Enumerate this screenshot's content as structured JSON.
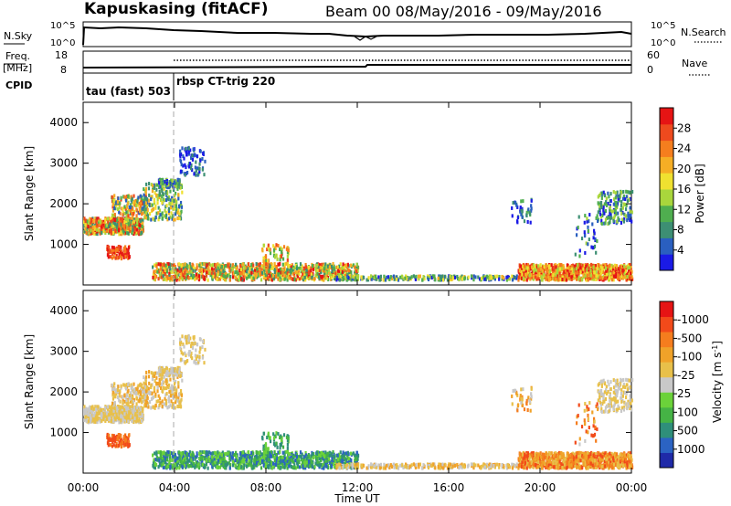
{
  "header": {
    "station": "Kapuskasing (fitACF)",
    "beam_time": "Beam 00  08/May/2016 - 09/May/2016"
  },
  "panels": {
    "nsky": {
      "left_label": "N.Sky",
      "left_ticks": [
        "10^5",
        "10^0"
      ],
      "right_ticks": [
        "10^5",
        "10^0"
      ],
      "right_label": "N.Search"
    },
    "freq": {
      "left_label": "Freq.",
      "unit": "[MHz]",
      "left_ticks": [
        "18",
        "8"
      ],
      "right_ticks": [
        "60",
        "0"
      ],
      "right_label": "Nave"
    },
    "cpid": {
      "label": "CPID",
      "segments": [
        "tau (fast) 503",
        "rbsp CT-trig 220"
      ]
    }
  },
  "chart_data": [
    {
      "type": "heatmap",
      "name": "power",
      "ylabel": "Slant Range [km]",
      "yticks": [
        1000,
        2000,
        3000,
        4000
      ],
      "xlabel": "",
      "colorbar": {
        "label": "Power [dB]",
        "ticks": [
          "4",
          "8",
          "12",
          "16",
          "20",
          "24",
          "28"
        ],
        "colors": [
          "#1a1ae6",
          "#2a5fc0",
          "#3d8f73",
          "#4fae4f",
          "#a9d63c",
          "#f0e130",
          "#f5ae25",
          "#f57e1e",
          "#ee4a1e",
          "#e61414"
        ]
      }
    },
    {
      "type": "heatmap",
      "name": "velocity",
      "ylabel": "Slant Range [km]",
      "yticks": [
        1000,
        2000,
        3000,
        4000
      ],
      "xlabel": "Time UT",
      "xticks": [
        "00:00",
        "04:00",
        "08:00",
        "12:00",
        "16:00",
        "20:00",
        "00:00"
      ],
      "colorbar": {
        "label": "Velocity [m s-1]",
        "ticks": [
          "1000",
          "500",
          "100",
          "25",
          "-25",
          "-100",
          "-500",
          "-1000"
        ],
        "colors": [
          "#1f2aa8",
          "#2b63c3",
          "#2f8f7a",
          "#45b345",
          "#6bd23a",
          "#c8c8c8",
          "#e8c04a",
          "#f0a229",
          "#f57d1e",
          "#f24a1a",
          "#e61414"
        ]
      }
    }
  ]
}
